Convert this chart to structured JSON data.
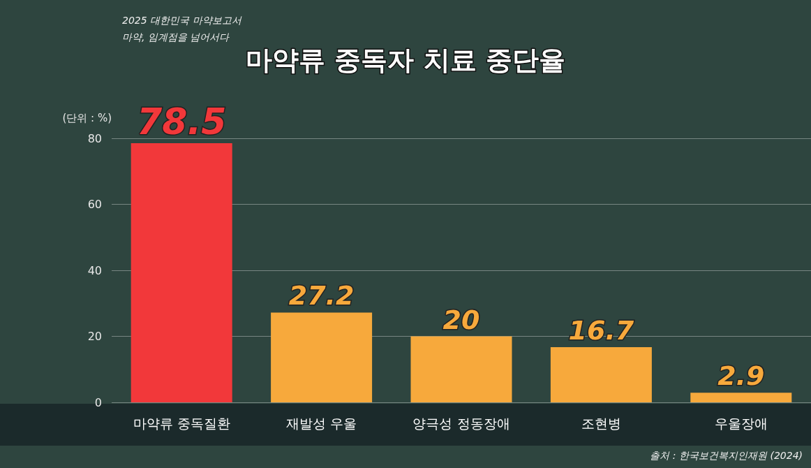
{
  "chart_data": {
    "type": "bar",
    "title": "마약류 중독자 치료 중단율",
    "ylabel": "(단위 : %)",
    "annotations": [
      "2025 대한민국 마약보고서",
      "마약, 임계점을 넘어서다",
      "출처 : 한국보건복지인재원 (2024)"
    ],
    "categories": [
      "마약류 중독질환",
      "재발성 우울",
      "양극성 정동장애",
      "조현병",
      "우울장애"
    ],
    "values": [
      78.5,
      27.2,
      20,
      16.7,
      2.9
    ],
    "colors": [
      "#f2383a",
      "#f7a93c",
      "#f7a93c",
      "#f7a93c",
      "#f7a93c"
    ],
    "ylim": [
      0,
      80
    ],
    "yticks": [
      0,
      20,
      40,
      60,
      80
    ],
    "grid": "y",
    "data_labels": true
  }
}
